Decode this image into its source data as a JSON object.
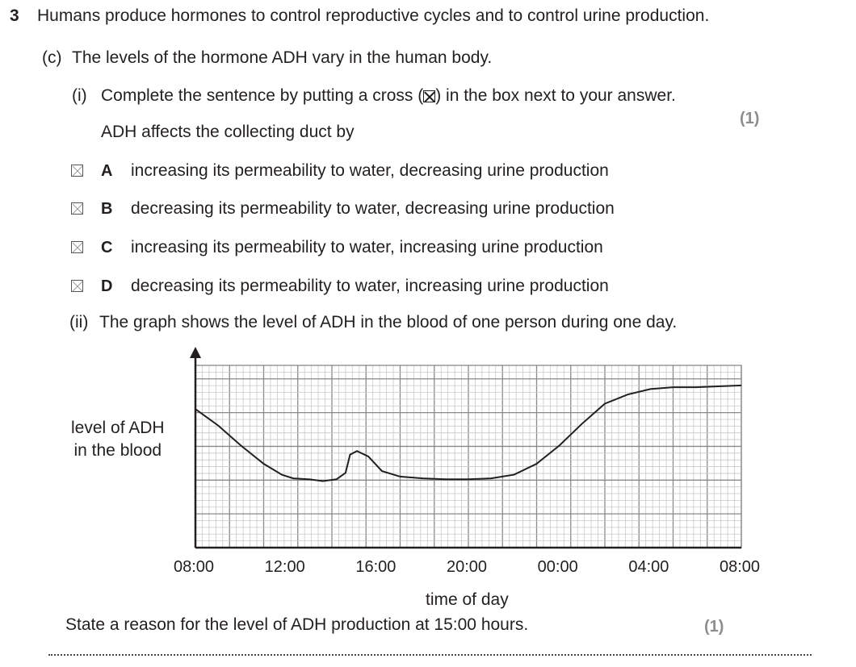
{
  "question": {
    "number": "3",
    "stem": "Humans produce hormones to control reproductive cycles and to control urine production."
  },
  "part_c": {
    "label": "(c)",
    "text": "The levels of the hormone ADH vary in the human body."
  },
  "part_i": {
    "label": "(i)",
    "instruction_before": "Complete the sentence by putting a cross (",
    "instruction_after": ") in the box next to your answer.",
    "marks": "(1)",
    "sentence": "ADH affects the collecting duct by",
    "options": [
      {
        "letter": "A",
        "text": "increasing its permeability to water, decreasing urine production"
      },
      {
        "letter": "B",
        "text": "decreasing its permeability to water, decreasing urine production"
      },
      {
        "letter": "C",
        "text": "increasing its permeability to water, increasing urine production"
      },
      {
        "letter": "D",
        "text": "decreasing its permeability to water, increasing urine production"
      }
    ]
  },
  "part_ii": {
    "label": "(ii)",
    "text": "The graph shows the level of ADH in the blood of one person during one day.",
    "question": "State a reason for the level of ADH production at 15:00 hours.",
    "marks": "(1)"
  },
  "chart_data": {
    "type": "line",
    "ylabel_line1": "level of ADH",
    "ylabel_line2": "in the blood",
    "xlabel": "time of day",
    "x_ticks": [
      "08:00",
      "12:00",
      "16:00",
      "20:00",
      "00:00",
      "04:00",
      "08:00"
    ],
    "x_unit": "hours since 08:00",
    "xlim": [
      0,
      24
    ],
    "ylim": [
      0,
      10
    ],
    "y_scale": "no numeric scale shown; values are relative grid units",
    "grid": true,
    "series": [
      {
        "points": [
          [
            0,
            7.6
          ],
          [
            1,
            6.7
          ],
          [
            2,
            5.6
          ],
          [
            3,
            4.6
          ],
          [
            3.8,
            4.0
          ],
          [
            4.3,
            3.8
          ],
          [
            5,
            3.75
          ],
          [
            5.6,
            3.65
          ],
          [
            6.2,
            3.75
          ],
          [
            6.6,
            4.1
          ],
          [
            6.8,
            5.1
          ],
          [
            7.1,
            5.3
          ],
          [
            7.6,
            5.0
          ],
          [
            8.2,
            4.2
          ],
          [
            9,
            3.9
          ],
          [
            10,
            3.8
          ],
          [
            11,
            3.75
          ],
          [
            12,
            3.75
          ],
          [
            13,
            3.8
          ],
          [
            14,
            4.0
          ],
          [
            15,
            4.6
          ],
          [
            16,
            5.6
          ],
          [
            17,
            6.8
          ],
          [
            18,
            7.9
          ],
          [
            19,
            8.4
          ],
          [
            20,
            8.7
          ],
          [
            21,
            8.8
          ],
          [
            22,
            8.8
          ],
          [
            23,
            8.85
          ],
          [
            24,
            8.9
          ]
        ]
      }
    ]
  }
}
